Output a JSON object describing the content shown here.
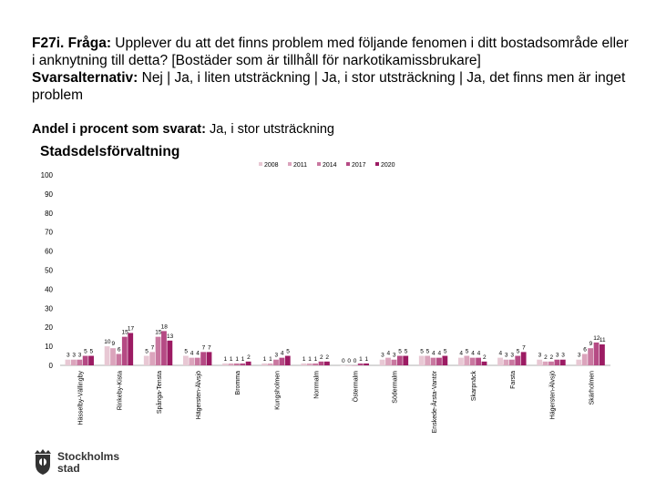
{
  "question": {
    "prefix": "F27i. Fråga:",
    "text": " Upplever du att det finns problem med följande fenomen i ditt bostadsområde eller i anknytning till detta? [Bostäder som är tillhåll för narkotikamissbrukare]",
    "answers_label": "Svarsalternativ:",
    "answers": " Nej | Ja, i liten utsträckning | Ja, i stor utsträckning | Ja, det finns men är inget problem"
  },
  "subtitle": {
    "label": "Andel i procent som svarat:",
    "value": " Ja, i stor utsträckning"
  },
  "group_title": "Stadsdelsförvaltning",
  "logo": {
    "line1": "Stockholms",
    "line2": "stad"
  },
  "chart_data": {
    "type": "bar",
    "ylim": [
      0,
      100
    ],
    "yticks": [
      0,
      10,
      20,
      30,
      40,
      50,
      60,
      70,
      80,
      90,
      100
    ],
    "legend_position": "top-right",
    "categories": [
      "Hässelby-Vällingby",
      "Rinkeby-Kista",
      "Spånga-Tensta",
      "Hägersten-Älvsjö",
      "Bromma",
      "Kungsholmen",
      "Norrmalm",
      "Östermalm",
      "Södermalm",
      "Enskede-Årsta-Vantör",
      "Skarpnäck",
      "Farsta",
      "Hägersten-Älvsjö",
      "Skärholmen"
    ],
    "series": [
      {
        "name": "2008",
        "color": "#e8c8d4",
        "values": [
          3,
          10,
          5,
          5,
          1,
          1,
          1,
          0,
          3,
          5,
          4,
          4,
          3,
          3
        ]
      },
      {
        "name": "2011",
        "color": "#dba4bc",
        "values": [
          3,
          9,
          7,
          4,
          1,
          1,
          1,
          0,
          4,
          5,
          5,
          3,
          2,
          6
        ]
      },
      {
        "name": "2014",
        "color": "#c978a0",
        "values": [
          3,
          6,
          15,
          4,
          1,
          3,
          1,
          0,
          3,
          4,
          4,
          3,
          2,
          9
        ]
      },
      {
        "name": "2017",
        "color": "#b54a84",
        "values": [
          5,
          15,
          18,
          7,
          1,
          4,
          2,
          1,
          5,
          4,
          4,
          5,
          3,
          12
        ]
      },
      {
        "name": "2020",
        "color": "#9c1b63",
        "values": [
          5,
          17,
          13,
          7,
          2,
          5,
          2,
          1,
          5,
          5,
          2,
          7,
          3,
          11
        ]
      }
    ]
  }
}
